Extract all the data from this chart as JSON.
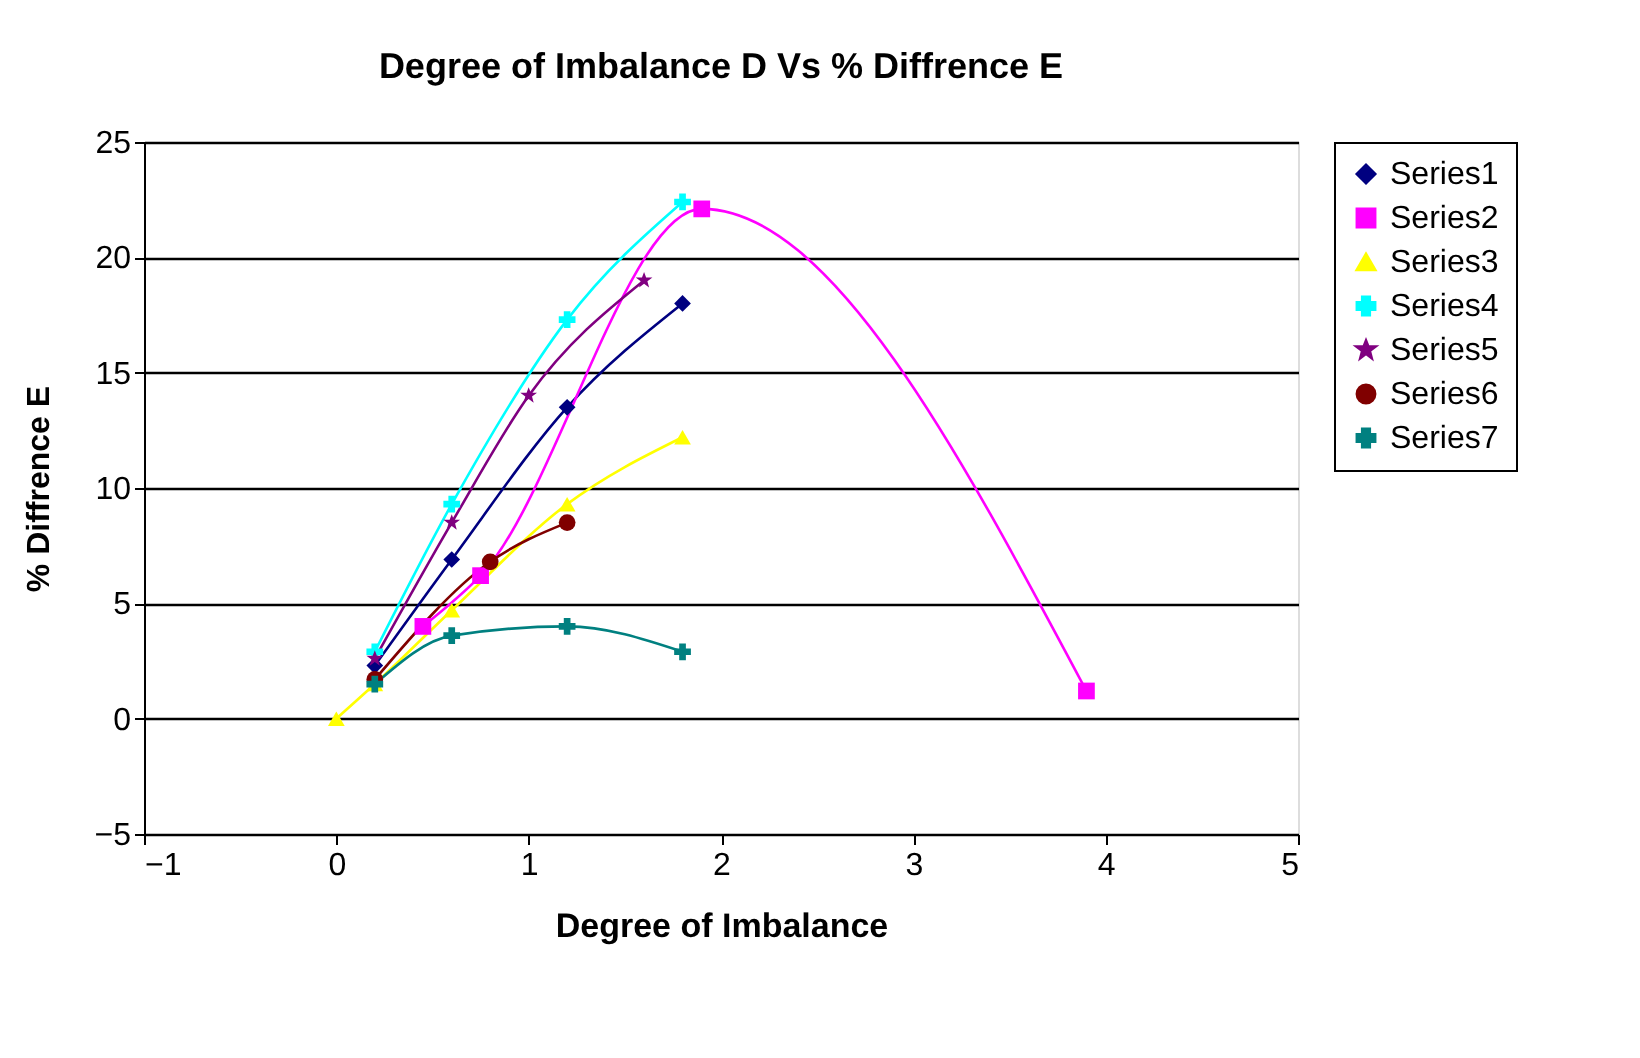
{
  "chart_data": {
    "type": "line",
    "title": "Degree of Imbalance D Vs % Diffrence E",
    "xlabel": "Degree of Imbalance",
    "ylabel": "% Diffrence E",
    "xlim": [
      -1,
      5
    ],
    "xticks": [
      -1,
      0,
      1,
      2,
      3,
      4,
      5
    ],
    "ylim": [
      -5,
      25
    ],
    "yticks": [
      -5,
      0,
      5,
      10,
      15,
      20,
      25
    ],
    "grid": "y",
    "legend": "right",
    "series": [
      {
        "name": "Series1",
        "color": "#000080",
        "marker": "diamond",
        "x": [
          0.2,
          0.6,
          1.2,
          1.8
        ],
        "values": [
          2.3,
          6.9,
          13.5,
          18
        ]
      },
      {
        "name": "Series2",
        "color": "#ff00ff",
        "marker": "square",
        "x": [
          0.45,
          0.75,
          1.9,
          3.9
        ],
        "values": [
          4,
          6.2,
          22.1,
          1.2
        ]
      },
      {
        "name": "Series3",
        "color": "#ffff00",
        "marker": "triangle",
        "x": [
          0,
          0.2,
          0.6,
          1.2,
          1.8
        ],
        "values": [
          0,
          1.5,
          4.7,
          9.3,
          12.2
        ]
      },
      {
        "name": "Series4",
        "color": "#00ffff",
        "marker": "cross",
        "x": [
          0.2,
          0.6,
          1.2,
          1.8
        ],
        "values": [
          2.9,
          9.3,
          17.3,
          22.4
        ]
      },
      {
        "name": "Series5",
        "color": "#800080",
        "marker": "star",
        "x": [
          0.2,
          0.6,
          1.0,
          1.6
        ],
        "values": [
          2.6,
          8.5,
          14,
          19
        ]
      },
      {
        "name": "Series6",
        "color": "#800000",
        "marker": "circle",
        "x": [
          0.2,
          0.8,
          1.2
        ],
        "values": [
          1.7,
          6.8,
          8.5
        ]
      },
      {
        "name": "Series7",
        "color": "#008080",
        "marker": "cross",
        "x": [
          0.2,
          0.6,
          1.2,
          1.8
        ],
        "values": [
          1.5,
          3.6,
          4.0,
          2.9
        ]
      }
    ]
  }
}
